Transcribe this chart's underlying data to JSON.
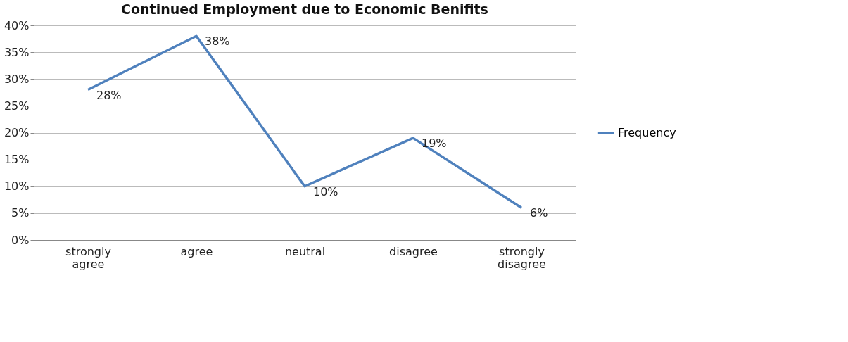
{
  "chart_data": {
    "type": "line",
    "title": "Continued Employment due to Economic Benifits",
    "categories": [
      "strongly agree",
      "agree",
      "neutral",
      "disagree",
      "strongly disagree"
    ],
    "series": [
      {
        "name": "Frequency",
        "color": "#4f81bd",
        "values": [
          28,
          38,
          10,
          19,
          6
        ],
        "value_labels": [
          "28%",
          "38%",
          "10%",
          "19%",
          "6%"
        ]
      }
    ],
    "ylim": [
      0,
      40
    ],
    "yticks": [
      {
        "value": 0,
        "label": "0%"
      },
      {
        "value": 5,
        "label": "5%"
      },
      {
        "value": 10,
        "label": "10%"
      },
      {
        "value": 15,
        "label": "15%"
      },
      {
        "value": 20,
        "label": "20%"
      },
      {
        "value": 25,
        "label": "25%"
      },
      {
        "value": 30,
        "label": "30%"
      },
      {
        "value": 35,
        "label": "35%"
      },
      {
        "value": 40,
        "label": "40%"
      }
    ],
    "grid": "y",
    "legend": "right",
    "marker": "none",
    "line_style": "solid"
  }
}
